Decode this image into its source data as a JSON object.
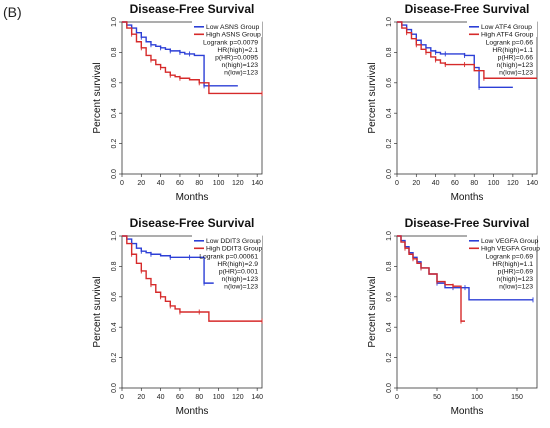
{
  "panel_label": "(B)",
  "chart_data": [
    {
      "type": "line",
      "title": "Disease-Free Survival",
      "xlabel": "Months",
      "ylabel": "Percent survival",
      "xticks": [
        0,
        20,
        40,
        60,
        80,
        100,
        120,
        140
      ],
      "yticks": [
        "0.0",
        "0.2",
        "0.4",
        "0.6",
        "0.8",
        "1.0"
      ],
      "xlim": [
        0,
        145
      ],
      "ylim": [
        0,
        1.0
      ],
      "legend_position": "top-right",
      "stats": [
        "Logrank p=0.0079",
        "HR(high)=2.1",
        "p(HR)=0.0095",
        "n(high)=123",
        "n(low)=123"
      ],
      "series": [
        {
          "name": "Low ASNS Group",
          "color": "#2c3fd6",
          "x": [
            0,
            5,
            10,
            15,
            20,
            25,
            30,
            35,
            40,
            45,
            50,
            55,
            60,
            65,
            70,
            75,
            85,
            120
          ],
          "y": [
            1.0,
            0.98,
            0.96,
            0.93,
            0.9,
            0.87,
            0.85,
            0.84,
            0.83,
            0.82,
            0.81,
            0.81,
            0.8,
            0.79,
            0.79,
            0.78,
            0.58,
            0.58
          ]
        },
        {
          "name": "High ASNS Group",
          "color": "#d62a2a",
          "x": [
            0,
            5,
            10,
            15,
            20,
            25,
            30,
            35,
            40,
            45,
            50,
            55,
            60,
            70,
            80,
            90,
            145
          ],
          "y": [
            1.0,
            0.96,
            0.92,
            0.87,
            0.83,
            0.78,
            0.75,
            0.72,
            0.7,
            0.67,
            0.65,
            0.64,
            0.63,
            0.62,
            0.6,
            0.53,
            0.53
          ]
        }
      ]
    },
    {
      "type": "line",
      "title": "Disease-Free Survival",
      "xlabel": "Months",
      "ylabel": "Percent survival",
      "xticks": [
        0,
        20,
        40,
        60,
        80,
        100,
        120,
        140
      ],
      "yticks": [
        "0.0",
        "0.2",
        "0.4",
        "0.6",
        "0.8",
        "1.0"
      ],
      "xlim": [
        0,
        145
      ],
      "ylim": [
        0,
        1.0
      ],
      "legend_position": "top-right",
      "stats": [
        "Logrank p=0.66",
        "HR(high)=1.1",
        "p(HR)=0.66",
        "n(high)=123",
        "n(low)=123"
      ],
      "series": [
        {
          "name": "Low ATF4 Group",
          "color": "#2c3fd6",
          "x": [
            0,
            5,
            10,
            15,
            20,
            25,
            30,
            35,
            40,
            45,
            50,
            60,
            70,
            80,
            85,
            120
          ],
          "y": [
            1.0,
            0.98,
            0.95,
            0.92,
            0.88,
            0.85,
            0.83,
            0.81,
            0.8,
            0.79,
            0.79,
            0.79,
            0.78,
            0.7,
            0.57,
            0.57
          ]
        },
        {
          "name": "High ATF4 Group",
          "color": "#d62a2a",
          "x": [
            0,
            5,
            10,
            15,
            20,
            25,
            30,
            35,
            40,
            45,
            50,
            60,
            70,
            80,
            90,
            145
          ],
          "y": [
            1.0,
            0.96,
            0.93,
            0.89,
            0.85,
            0.82,
            0.8,
            0.77,
            0.75,
            0.73,
            0.72,
            0.72,
            0.72,
            0.68,
            0.63,
            0.63
          ]
        }
      ]
    },
    {
      "type": "line",
      "title": "Disease-Free Survival",
      "xlabel": "Months",
      "ylabel": "Percent survival",
      "xticks": [
        0,
        20,
        40,
        60,
        80,
        100,
        120,
        140
      ],
      "yticks": [
        "0.0",
        "0.2",
        "0.4",
        "0.6",
        "0.8",
        "1.0"
      ],
      "xlim": [
        0,
        145
      ],
      "ylim": [
        0,
        1.0
      ],
      "legend_position": "top-right",
      "stats": [
        "Logrank p=0.00061",
        "HR(high)=2.9",
        "p(HR)=0.001",
        "n(high)=123",
        "n(low)=123"
      ],
      "series": [
        {
          "name": "Low DDIT3 Group",
          "color": "#2c3fd6",
          "x": [
            0,
            5,
            10,
            15,
            20,
            25,
            30,
            40,
            50,
            60,
            70,
            80,
            85,
            95
          ],
          "y": [
            1.0,
            0.98,
            0.95,
            0.92,
            0.9,
            0.89,
            0.88,
            0.87,
            0.86,
            0.86,
            0.86,
            0.86,
            0.69,
            0.69
          ]
        },
        {
          "name": "High DDIT3 Group",
          "color": "#d62a2a",
          "x": [
            0,
            5,
            10,
            15,
            20,
            25,
            30,
            35,
            40,
            45,
            50,
            55,
            60,
            70,
            80,
            90,
            145
          ],
          "y": [
            1.0,
            0.95,
            0.88,
            0.82,
            0.77,
            0.72,
            0.68,
            0.63,
            0.6,
            0.57,
            0.54,
            0.52,
            0.5,
            0.5,
            0.5,
            0.44,
            0.44
          ]
        }
      ]
    },
    {
      "type": "line",
      "title": "Disease-Free Survival",
      "xlabel": "Months",
      "ylabel": "Percent survival",
      "xticks": [
        0,
        50,
        100,
        150
      ],
      "yticks": [
        "0.0",
        "0.2",
        "0.4",
        "0.6",
        "0.8",
        "1.0"
      ],
      "xlim": [
        0,
        175
      ],
      "ylim": [
        0,
        1.0
      ],
      "legend_position": "top-right",
      "stats": [
        "Logrank p=0.69",
        "HR(high)=1.1",
        "p(HR)=0.69",
        "n(high)=123",
        "n(low)=123"
      ],
      "series": [
        {
          "name": "Low VEGFA Group",
          "color": "#2c3fd6",
          "x": [
            0,
            5,
            10,
            15,
            20,
            25,
            30,
            40,
            50,
            60,
            70,
            80,
            85,
            90,
            170
          ],
          "y": [
            1.0,
            0.97,
            0.93,
            0.89,
            0.86,
            0.83,
            0.79,
            0.75,
            0.69,
            0.66,
            0.66,
            0.66,
            0.66,
            0.58,
            0.58
          ]
        },
        {
          "name": "High VEGFA Group",
          "color": "#d62a2a",
          "x": [
            0,
            5,
            10,
            15,
            20,
            25,
            30,
            40,
            50,
            60,
            70,
            75,
            80,
            85
          ],
          "y": [
            1.0,
            0.96,
            0.92,
            0.88,
            0.85,
            0.82,
            0.79,
            0.75,
            0.7,
            0.68,
            0.67,
            0.67,
            0.44,
            0.44
          ]
        }
      ]
    }
  ]
}
